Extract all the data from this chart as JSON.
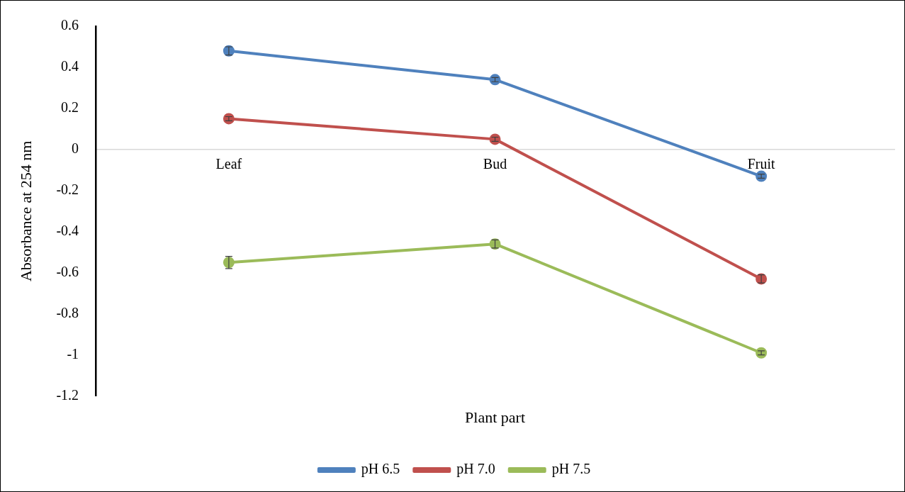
{
  "chart_data": {
    "type": "line",
    "xlabel": "Plant part",
    "ylabel": "Absorbance at 254 nm",
    "categories": [
      "Leaf",
      "Bud",
      "Fruit"
    ],
    "series": [
      {
        "name": "pH 6.5",
        "color": "#4f81bd",
        "values": [
          0.48,
          0.34,
          -0.13
        ],
        "errors": [
          0.02,
          0.01,
          0.01
        ]
      },
      {
        "name": "pH 7.0",
        "color": "#c0504d",
        "values": [
          0.15,
          0.05,
          -0.63
        ],
        "errors": [
          0.01,
          0.01,
          0.02
        ]
      },
      {
        "name": "pH 7.5",
        "color": "#9bbb59",
        "values": [
          -0.55,
          -0.46,
          -0.99
        ],
        "errors": [
          0.03,
          0.02,
          0.01
        ]
      }
    ],
    "ylim": [
      -1.2,
      0.6
    ],
    "yticks": [
      -1.2,
      -1,
      -0.8,
      -0.6,
      -0.4,
      -0.2,
      0,
      0.2,
      0.4,
      0.6
    ],
    "grid": false,
    "legend": "bottom",
    "marker": "circle",
    "line_style": "solid"
  }
}
